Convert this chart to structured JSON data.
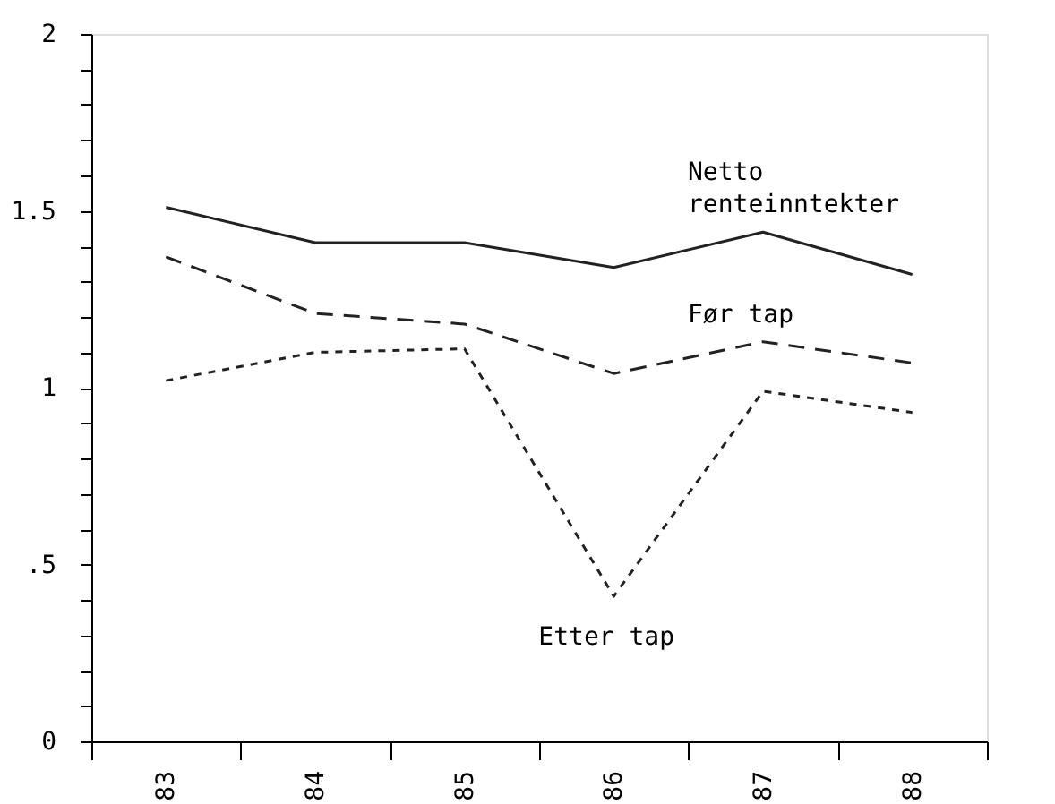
{
  "chart_data": {
    "type": "line",
    "categories": [
      "83",
      "84",
      "85",
      "86",
      "87",
      "88"
    ],
    "series": [
      {
        "name": "Netto renteinntekter",
        "color": "#222222",
        "line_style": "solid",
        "values": [
          1.51,
          1.41,
          1.41,
          1.34,
          1.44,
          1.32
        ]
      },
      {
        "name": "Før tap",
        "color": "#222222",
        "line_style": "dashed",
        "values": [
          1.37,
          1.21,
          1.18,
          1.04,
          1.13,
          1.07
        ]
      },
      {
        "name": "Etter tap",
        "color": "#222222",
        "line_style": "dotted",
        "values": [
          1.02,
          1.1,
          1.11,
          0.41,
          0.99,
          0.93
        ]
      }
    ],
    "ylim": [
      0,
      2
    ],
    "yticks": [
      0,
      {
        "value": 0.1,
        "label": null
      },
      {
        "value": 0.2,
        "label": null
      },
      {
        "value": 0.3,
        "label": null
      },
      {
        "value": 0.4,
        "label": null
      },
      {
        "value": 0.5,
        "label": ".5"
      },
      {
        "value": 0.6,
        "label": null
      },
      {
        "value": 0.7,
        "label": null
      },
      {
        "value": 0.8,
        "label": null
      },
      {
        "value": 0.9,
        "label": null
      },
      1,
      {
        "value": 1.1,
        "label": null
      },
      {
        "value": 1.2,
        "label": null
      },
      {
        "value": 1.3,
        "label": null
      },
      {
        "value": 1.4,
        "label": null
      },
      1.5,
      {
        "value": 1.6,
        "label": null
      },
      {
        "value": 1.7,
        "label": null
      },
      {
        "value": 1.8,
        "label": null
      },
      {
        "value": 1.9,
        "label": null
      },
      2
    ],
    "grid": false,
    "marker": "none"
  }
}
